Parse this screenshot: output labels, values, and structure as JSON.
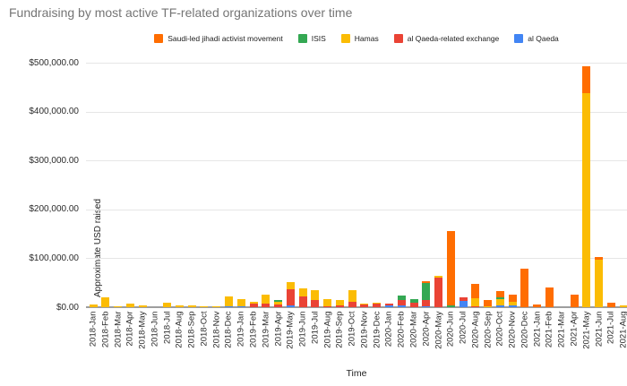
{
  "title": "Fundraising by most active TF-related organizations over time",
  "chart_data": {
    "type": "bar",
    "stacked": true,
    "title": "Fundraising by most active TF-related organizations over time",
    "xlabel": "Time",
    "ylabel": "Approximate USD raised",
    "ylim": [
      0,
      500000
    ],
    "ytick_labels": [
      "$0.00",
      "$100,000.00",
      "$200,000.00",
      "$300,000.00",
      "$400,000.00",
      "$500,000.00"
    ],
    "grid": true,
    "legend_position": "top",
    "stacking_note": "segments stack bottom-to-top in reverse of series list (al Qaeda at bottom, Saudi-led on top)",
    "categories": [
      "2018-Jan",
      "2018-Feb",
      "2018-Mar",
      "2018-Apr",
      "2018-May",
      "2018-Jun",
      "2018-Jul",
      "2018-Aug",
      "2018-Sep",
      "2018-Oct",
      "2018-Nov",
      "2018-Dec",
      "2019-Jan",
      "2019-Feb",
      "2019-Mar",
      "2019-Apr",
      "2019-May",
      "2019-Jun",
      "2019-Jul",
      "2019-Aug",
      "2019-Sep",
      "2019-Oct",
      "2019-Nov",
      "2019-Dec",
      "2020-Jan",
      "2020-Feb",
      "2020-Mar",
      "2020-Apr",
      "2020-May",
      "2020-Jun",
      "2020-Jul",
      "2020-Aug",
      "2020-Sep",
      "2020-Oct",
      "2020-Nov",
      "2020-Dec",
      "2021-Jan",
      "2021-Feb",
      "2021-Mar",
      "2021-Apr",
      "2021-May",
      "2021-Jun",
      "2021-Jul",
      "2021-Aug"
    ],
    "series": [
      {
        "name": "Saudi-led jihadi activist movement",
        "color": "#FF6D01",
        "values": [
          0,
          0,
          0,
          0,
          0,
          0,
          0,
          0,
          0,
          0,
          0,
          0,
          0,
          0,
          0,
          0,
          0,
          0,
          0,
          0,
          0,
          0,
          0,
          0,
          0,
          0,
          0,
          4000,
          0,
          152000,
          0,
          29000,
          14000,
          12000,
          14500,
          79000,
          5000,
          40000,
          0,
          25000,
          55000,
          5000,
          10000,
          0
        ]
      },
      {
        "name": "ISIS",
        "color": "#34A853",
        "values": [
          0,
          0,
          0,
          0,
          0,
          0,
          0,
          0,
          0,
          0,
          0,
          0,
          0,
          0,
          0,
          4000,
          0,
          0,
          0,
          0,
          0,
          0,
          0,
          0,
          0,
          8500,
          6000,
          35500,
          0,
          3000,
          0,
          0,
          0,
          4000,
          0,
          0,
          0,
          0,
          0,
          0,
          0,
          0,
          0,
          0
        ]
      },
      {
        "name": "Hamas",
        "color": "#FBBC04",
        "values": [
          6000,
          21000,
          2500,
          7000,
          3000,
          0,
          9500,
          3000,
          4000,
          1000,
          2500,
          19000,
          15000,
          5000,
          17500,
          5500,
          15000,
          16500,
          19500,
          13500,
          10500,
          23500,
          2000,
          2000,
          0,
          0,
          0,
          0,
          4500,
          0,
          0,
          16000,
          1500,
          14000,
          7500,
          0,
          0,
          0,
          0,
          0,
          437000,
          98000,
          0,
          3000
        ]
      },
      {
        "name": "al Qaeda-related exchange",
        "color": "#EA4335",
        "values": [
          0,
          0,
          0,
          0,
          0,
          0,
          0,
          0,
          0,
          0,
          0,
          0,
          0,
          6500,
          7500,
          5000,
          32000,
          22500,
          15000,
          2500,
          4500,
          11500,
          5000,
          7500,
          4000,
          12000,
          10000,
          12000,
          60000,
          0,
          8000,
          2500,
          0,
          0,
          0,
          0,
          0,
          0,
          0,
          0,
          0,
          0,
          0,
          0
        ]
      },
      {
        "name": "al Qaeda",
        "color": "#4285F4",
        "values": [
          0,
          0,
          0,
          0,
          0,
          0,
          0,
          0,
          0,
          0,
          0,
          2500,
          1500,
          0,
          0,
          0,
          4000,
          0,
          0,
          0,
          0,
          0,
          0,
          0,
          3000,
          3500,
          0,
          2500,
          0,
          0,
          12000,
          0,
          0,
          3000,
          3000,
          0,
          0,
          0,
          0,
          0,
          0,
          0,
          0,
          0
        ]
      }
    ]
  }
}
